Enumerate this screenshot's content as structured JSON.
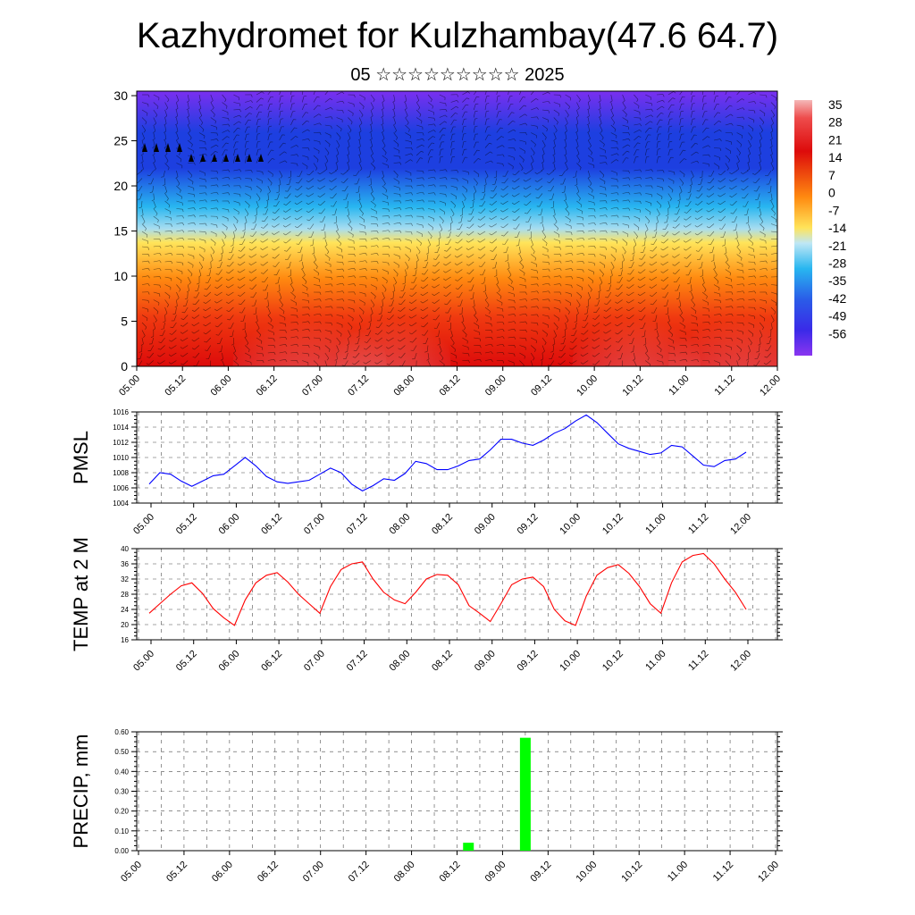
{
  "title": "Kazhydromet for Kulzhambay(47.6 64.7)",
  "subtitle": "05 ☆☆☆☆☆☆☆☆☆ 2025",
  "chart_data": [
    {
      "type": "heatmap",
      "name": "vertical-cross-section",
      "x_tick_labels": [
        "05.00",
        "05.12",
        "06.00",
        "06.12",
        "07.00",
        "07.12",
        "08.00",
        "08.12",
        "09.00",
        "09.12",
        "10.00",
        "10.12",
        "11.00",
        "11.12",
        "12.00"
      ],
      "y_tick_labels": [
        "0",
        "5",
        "10",
        "15",
        "20",
        "25",
        "30"
      ],
      "ylim": [
        0,
        30.5
      ],
      "colorbar_labels": [
        "35",
        "28",
        "21",
        "14",
        "7",
        "0",
        "-7",
        "-14",
        "-21",
        "-28",
        "-35",
        "-42",
        "-49",
        "-56"
      ],
      "colorbar_range": [
        -60,
        38
      ],
      "colors": {
        "cold": "#7a2ff0",
        "blue": "#1d3fe0",
        "cyan": "#28b6f0",
        "yellow": "#ffe45a",
        "orange": "#ff8a10",
        "red": "#dd0b0b",
        "warm": "#ee9a9a"
      }
    },
    {
      "type": "line",
      "name": "pmsl",
      "ylabel": "PMSL",
      "x_tick_labels": [
        "05.00",
        "05.12",
        "06.00",
        "06.12",
        "07.00",
        "07.12",
        "08.00",
        "08.12",
        "09.00",
        "09.12",
        "10.00",
        "10.12",
        "11.00",
        "11.12",
        "12.00"
      ],
      "y_tick_labels": [
        "1004",
        "1006",
        "1008",
        "1010",
        "1012",
        "1014",
        "1016"
      ],
      "ylim": [
        1004,
        1016
      ],
      "color": "#0000ff",
      "values": [
        1006.5,
        1008.0,
        1007.8,
        1006.9,
        1006.2,
        1006.9,
        1007.6,
        1007.8,
        1008.9,
        1010.0,
        1008.9,
        1007.5,
        1006.8,
        1006.6,
        1006.8,
        1007.0,
        1007.8,
        1008.6,
        1008.0,
        1006.5,
        1005.6,
        1006.3,
        1007.2,
        1007.0,
        1007.9,
        1009.5,
        1009.2,
        1008.4,
        1008.4,
        1008.9,
        1009.6,
        1009.8,
        1011.0,
        1012.4,
        1012.4,
        1011.9,
        1011.6,
        1012.3,
        1013.2,
        1013.8,
        1014.8,
        1015.6,
        1014.6,
        1013.2,
        1011.8,
        1011.2,
        1010.8,
        1010.4,
        1010.6,
        1011.6,
        1011.4,
        1010.2,
        1009.0,
        1008.8,
        1009.6,
        1009.8,
        1010.7
      ],
      "grid": true
    },
    {
      "type": "line",
      "name": "temp-2m",
      "ylabel": "TEMP at 2 M",
      "x_tick_labels": [
        "05.00",
        "05.12",
        "06.00",
        "06.12",
        "07.00",
        "07.12",
        "08.00",
        "08.12",
        "09.00",
        "09.12",
        "10.00",
        "10.12",
        "11.00",
        "11.12",
        "12.00"
      ],
      "y_tick_labels": [
        "16",
        "20",
        "24",
        "28",
        "32",
        "36",
        "40"
      ],
      "ylim": [
        16,
        40
      ],
      "color": "#ff0000",
      "values": [
        23.0,
        25.5,
        28.0,
        30.2,
        31.0,
        28.2,
        24.2,
        21.8,
        19.8,
        26.5,
        31.0,
        33.0,
        33.7,
        31.2,
        28.0,
        25.5,
        23.0,
        30.0,
        34.5,
        36.0,
        36.5,
        32.0,
        28.5,
        26.5,
        25.5,
        28.5,
        32.0,
        33.2,
        33.0,
        30.5,
        25.0,
        23.0,
        20.8,
        25.5,
        30.5,
        32.0,
        32.5,
        30.0,
        24.0,
        21.0,
        19.8,
        27.5,
        33.0,
        35.0,
        35.8,
        33.5,
        30.0,
        25.5,
        23.0,
        31.0,
        36.5,
        38.2,
        38.7,
        36.0,
        32.0,
        28.5,
        24.0
      ],
      "grid": true
    },
    {
      "type": "bar",
      "name": "precipitation",
      "ylabel": "PRECIP, mm",
      "x_tick_labels": [
        "05.00",
        "05.12",
        "06.00",
        "06.12",
        "07.00",
        "07.12",
        "08.00",
        "08.12",
        "09.00",
        "09.12",
        "10.00",
        "10.12",
        "11.00",
        "11.12",
        "12.00"
      ],
      "y_tick_labels": [
        "0.00",
        "0.10",
        "0.20",
        "0.30",
        "0.40",
        "0.50",
        "0.60"
      ],
      "ylim": [
        0,
        0.6
      ],
      "color": "#00ff00",
      "bars": [
        {
          "step": 29,
          "value": 0.04
        },
        {
          "step": 34,
          "value": 0.57
        }
      ],
      "grid": true
    }
  ]
}
